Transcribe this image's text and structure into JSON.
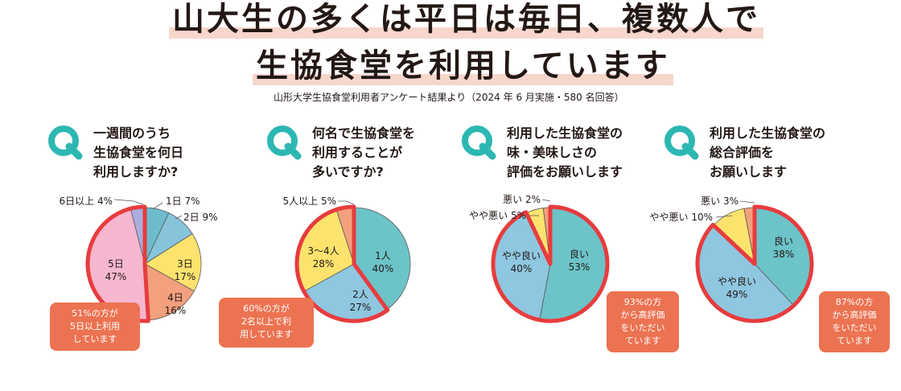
{
  "title": {
    "line1": "山大生の多くは平日は毎日、複数人で",
    "line2": "生協食堂を利用しています",
    "subtitle": "山形大学生協食堂利用者アンケート結果より（2024 年 6 月実施・580 名回答）"
  },
  "colors": {
    "teal": "#2db7b3",
    "highlight_ring": "#e73c3e",
    "callout": "#ec7352",
    "title_highlight": "#f7d6cc"
  },
  "chart_data": [
    {
      "type": "pie",
      "question": [
        "一週間のうち",
        "生協食堂を何日",
        "利用しますか?"
      ],
      "slices": [
        {
          "label": "1日",
          "value": 7,
          "color": "#6cbccd"
        },
        {
          "label": "2日",
          "value": 9,
          "color": "#87c4dc"
        },
        {
          "label": "3日",
          "value": 17,
          "color": "#fde36e"
        },
        {
          "label": "4日",
          "value": 16,
          "color": "#f2a07d"
        },
        {
          "label": "5日",
          "value": 47,
          "color": "#f6b6cf"
        },
        {
          "label": "6日以上",
          "value": 4,
          "color": "#a9aedc"
        }
      ],
      "highlight": [
        "5日",
        "6日以上"
      ],
      "callout": [
        "51%の方が",
        "5日以上利用",
        "しています"
      ]
    },
    {
      "type": "pie",
      "question": [
        "何名で生協食堂を",
        "利用することが",
        "多いですか?"
      ],
      "slices": [
        {
          "label": "1人",
          "value": 40,
          "color": "#6cc3c8"
        },
        {
          "label": "2人",
          "value": 27,
          "color": "#8fc6e0"
        },
        {
          "label": "3〜4人",
          "value": 28,
          "color": "#fde36e"
        },
        {
          "label": "5人以上",
          "value": 5,
          "color": "#f2a07d"
        }
      ],
      "highlight": [
        "2人",
        "3〜4人",
        "5人以上"
      ],
      "callout": [
        "60%の方が",
        "2名以上で利",
        "用しています"
      ]
    },
    {
      "type": "pie",
      "question": [
        "利用した生協食堂の",
        "味・美味しさの",
        "評価をお願いします"
      ],
      "slices": [
        {
          "label": "良い",
          "value": 53,
          "color": "#6cc3c8"
        },
        {
          "label": "やや良い",
          "value": 40,
          "color": "#8fc6e0"
        },
        {
          "label": "やや悪い",
          "value": 5,
          "color": "#fde36e"
        },
        {
          "label": "悪い",
          "value": 2,
          "color": "#f2a07d"
        }
      ],
      "highlight": [
        "良い",
        "やや良い"
      ],
      "callout": [
        "93%の方",
        "から高評価",
        "をいただい",
        "ています"
      ]
    },
    {
      "type": "pie",
      "question": [
        "利用した生協食堂の",
        "総合評価を",
        "お願いします"
      ],
      "slices": [
        {
          "label": "良い",
          "value": 38,
          "color": "#6cc3c8"
        },
        {
          "label": "やや良い",
          "value": 49,
          "color": "#8fc6e0"
        },
        {
          "label": "やや悪い",
          "value": 10,
          "color": "#fde36e"
        },
        {
          "label": "悪い",
          "value": 3,
          "color": "#f2a07d"
        }
      ],
      "highlight": [
        "良い",
        "やや良い"
      ],
      "callout": [
        "87%の方",
        "から高評価",
        "をいただい",
        "ています"
      ]
    }
  ]
}
